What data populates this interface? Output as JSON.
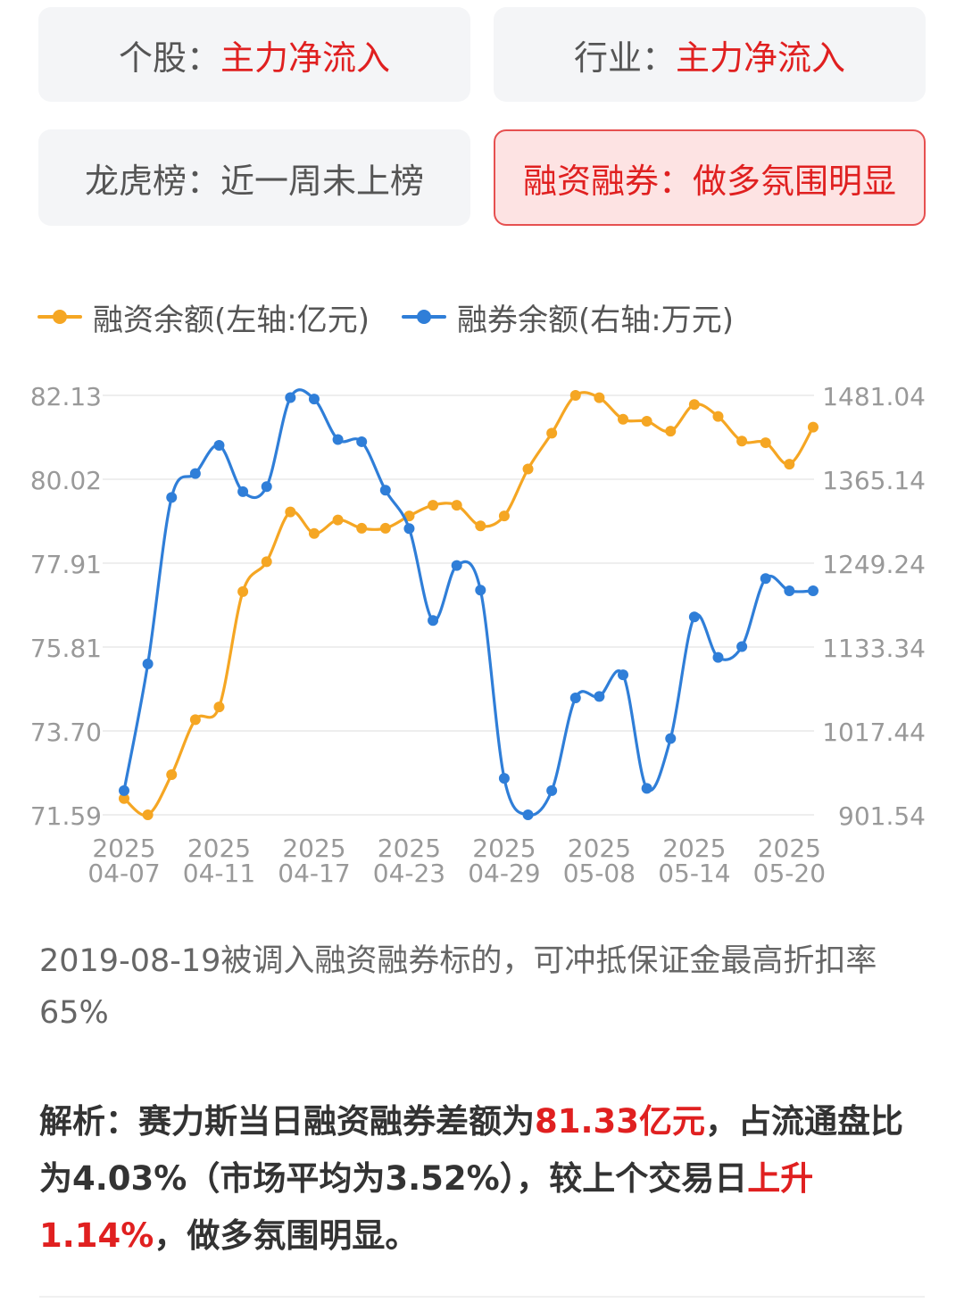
{
  "cards": [
    {
      "label": "个股：",
      "value": "主力净流入",
      "active": false
    },
    {
      "label": "行业：",
      "value": "主力净流入",
      "active": false
    },
    {
      "label": "龙虎榜：",
      "value": "近一周未上榜",
      "active": false
    },
    {
      "label": "融资融券：",
      "value": "做多氛围明显",
      "active": true
    }
  ],
  "legend": {
    "financing": "融资余额(左轴:亿元)",
    "lending": "融券余额(右轴:万元)"
  },
  "colors": {
    "financing": "#f5a623",
    "lending": "#2f7ed8",
    "grid": "#eeeeee",
    "axis_text": "#999999",
    "highlight": "#e02020"
  },
  "chart_data": {
    "type": "line",
    "x_ticks": [
      {
        "year": "2025",
        "date": "04-07",
        "index": 0
      },
      {
        "year": "2025",
        "date": "04-11",
        "index": 4
      },
      {
        "year": "2025",
        "date": "04-17",
        "index": 8
      },
      {
        "year": "2025",
        "date": "04-23",
        "index": 12
      },
      {
        "year": "2025",
        "date": "04-29",
        "index": 16
      },
      {
        "year": "2025",
        "date": "05-08",
        "index": 20
      },
      {
        "year": "2025",
        "date": "05-14",
        "index": 24
      },
      {
        "year": "2025",
        "date": "05-20",
        "index": 28
      }
    ],
    "y_left_ticks": [
      "82.13",
      "80.02",
      "77.91",
      "75.81",
      "73.70",
      "71.59"
    ],
    "y_right_ticks": [
      "1481.04",
      "1365.14",
      "1249.24",
      "1133.34",
      "1017.44",
      "901.54"
    ],
    "y_left_range": [
      71.59,
      82.13
    ],
    "y_right_range": [
      901.54,
      1481.04
    ],
    "series": [
      {
        "name": "融资余额(左轴:亿元)",
        "axis": "left",
        "values": [
          72.0,
          71.59,
          72.6,
          73.98,
          74.3,
          77.2,
          77.95,
          79.2,
          78.66,
          79.0,
          78.79,
          78.79,
          79.1,
          79.37,
          79.37,
          78.85,
          79.1,
          80.28,
          81.18,
          82.13,
          82.07,
          81.53,
          81.48,
          81.23,
          81.9,
          81.6,
          80.98,
          80.94,
          80.4,
          81.33
        ]
      },
      {
        "name": "融券余额(右轴:万元)",
        "axis": "right",
        "values": [
          935,
          1110,
          1340,
          1373,
          1412,
          1348,
          1355,
          1478,
          1476,
          1420,
          1417,
          1350,
          1297,
          1170,
          1246,
          1212,
          952,
          901.54,
          935,
          1063,
          1065,
          1095,
          938,
          1007,
          1175,
          1119,
          1134,
          1228,
          1211,
          1211
        ]
      }
    ],
    "grid": true,
    "legend_position": "top-left"
  },
  "note": "2019-08-19被调入融资融券标的，可冲抵保证金最高折扣率65%",
  "analysis": {
    "prefix": "解析：",
    "text1": "赛力斯当日融资融券差额为",
    "amount": "81.33亿元",
    "text2": "，占流通盘比为4.03%（市场平均为3.52%），较上个交易日",
    "change": "上升1.14%",
    "text3": "，做多氛围明显。"
  }
}
